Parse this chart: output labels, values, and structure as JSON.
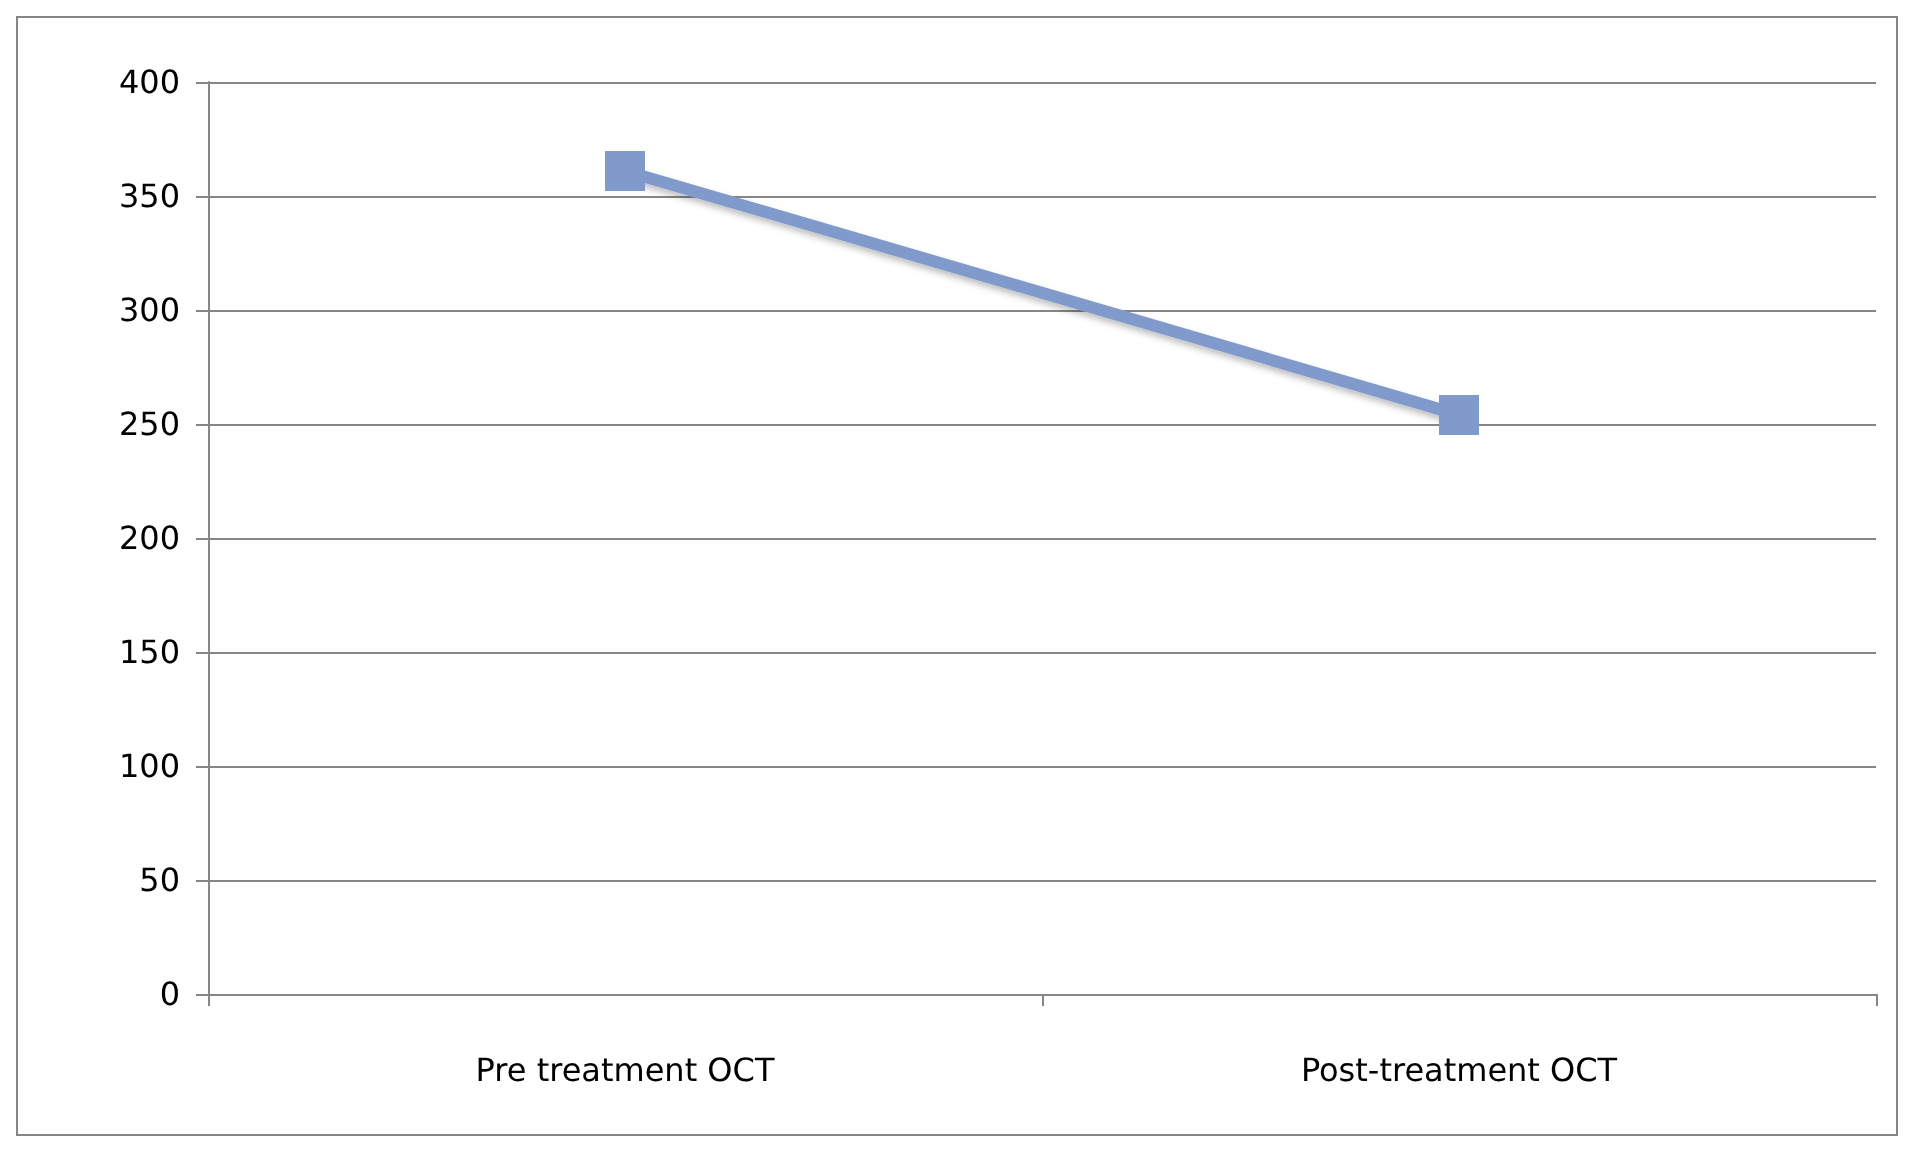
{
  "chart_data": {
    "type": "line",
    "categories": [
      "Pre treatment OCT",
      "Post-treatment OCT"
    ],
    "series": [
      {
        "color": "#7f9acb",
        "values": [
          361,
          254
        ]
      }
    ],
    "ylim": [
      0,
      400
    ],
    "yticks": [
      0,
      50,
      100,
      150,
      200,
      250,
      300,
      350,
      400
    ],
    "grid": "y",
    "marker": "square",
    "line_style": "solid"
  }
}
